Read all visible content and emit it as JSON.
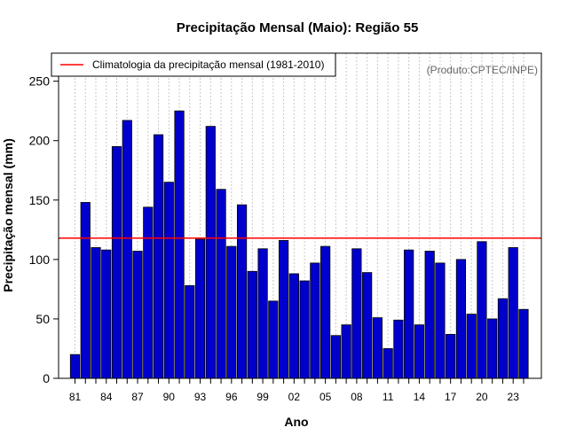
{
  "chart_data": {
    "type": "bar",
    "title": "Precipitação Mensal (Maio): Região 55",
    "xlabel": "Ano",
    "ylabel": "Precipitação mensal (mm)",
    "credit": "(Produto:CPTEC/INPE)",
    "legend": {
      "label": "Climatologia da precipitação mensal (1981-2010)",
      "placement": "top-left"
    },
    "climatology": 118,
    "ylim": [
      0,
      275
    ],
    "yticks": [
      0,
      50,
      100,
      150,
      200,
      250
    ],
    "categories": [
      "81",
      "82",
      "83",
      "84",
      "85",
      "86",
      "87",
      "88",
      "89",
      "90",
      "91",
      "92",
      "93",
      "94",
      "95",
      "96",
      "97",
      "98",
      "99",
      "00",
      "01",
      "02",
      "03",
      "04",
      "05",
      "06",
      "07",
      "08",
      "09",
      "10",
      "11",
      "12",
      "13",
      "14",
      "15",
      "16",
      "17",
      "18",
      "19",
      "20",
      "21",
      "22",
      "23",
      "24"
    ],
    "xtick_labels": [
      "81",
      "84",
      "87",
      "90",
      "93",
      "96",
      "99",
      "02",
      "05",
      "08",
      "11",
      "14",
      "17",
      "20",
      "23"
    ],
    "values": [
      20,
      148,
      110,
      108,
      195,
      217,
      107,
      144,
      205,
      165,
      225,
      78,
      117,
      212,
      159,
      111,
      146,
      90,
      109,
      65,
      116,
      88,
      82,
      97,
      111,
      36,
      45,
      109,
      89,
      51,
      25,
      49,
      108,
      45,
      107,
      97,
      37,
      100,
      54,
      115,
      50,
      67,
      110,
      58
    ],
    "colors": {
      "bar": "#0000cc",
      "bar_stroke": "#000000",
      "climatology": "#ff0000",
      "grid": "#c8c8c8"
    }
  }
}
